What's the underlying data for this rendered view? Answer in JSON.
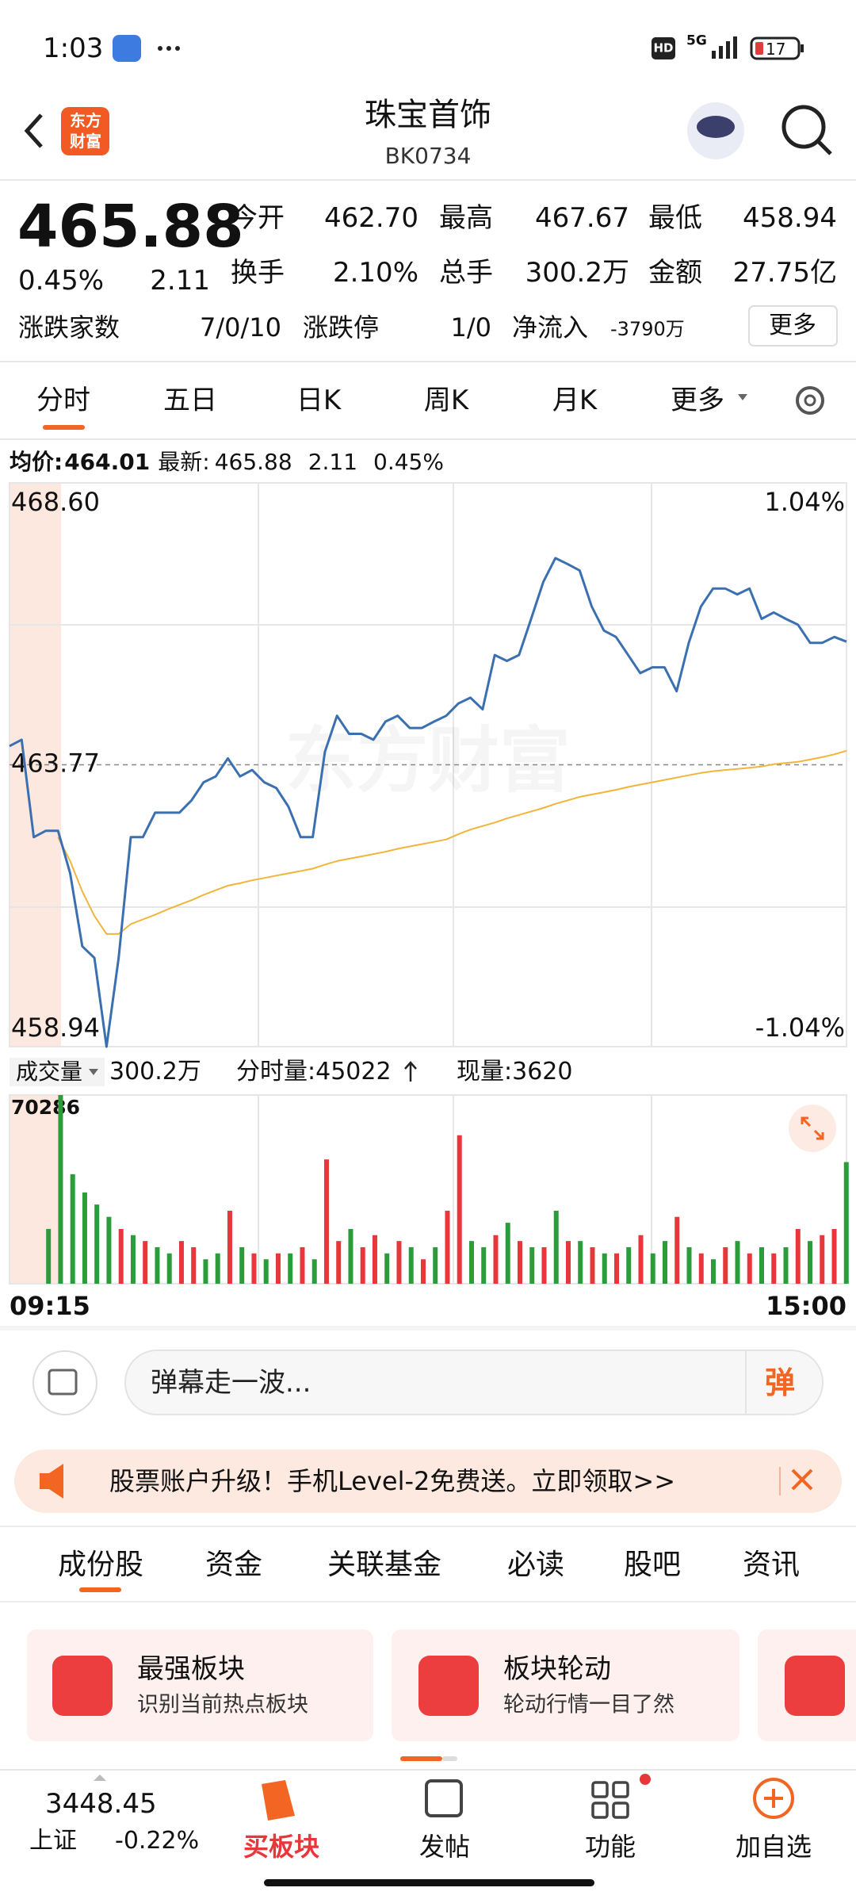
{
  "status_bar": {
    "time": "1:03",
    "hd": "HD",
    "network": "5G",
    "battery": "17"
  },
  "header": {
    "title": "珠宝首饰",
    "code": "BK0734",
    "logo": [
      "东方",
      "财富"
    ]
  },
  "quote": {
    "price": "465.88",
    "change_pct": "0.45%",
    "change": "2.11",
    "fields": [
      [
        "今开",
        "462.70"
      ],
      [
        "最高",
        "467.67"
      ],
      [
        "最低",
        "458.94"
      ],
      [
        "换手",
        "2.10%"
      ],
      [
        "总手",
        "300.2万"
      ],
      [
        "金额",
        "27.75亿"
      ]
    ],
    "breadth_label": "涨跌家数",
    "breadth": "7/0/10",
    "limit_label": "涨跌停",
    "limit": "1/0",
    "inflow_label": "净流入",
    "inflow": "-3790万",
    "more": "更多"
  },
  "period_tabs": [
    "分时",
    "五日",
    "日K",
    "周K",
    "月K",
    "更多"
  ],
  "chart_data": [
    {
      "type": "line",
      "watermark": "东方财富",
      "info": {
        "avg_label": "均价:",
        "avg": "464.01",
        "latest_label": "最新:",
        "latest": "465.88",
        "change": "2.11",
        "change_pct": "0.45%"
      },
      "ylim": [
        458.94,
        468.6
      ],
      "yticks": [
        {
          "value": 468.6,
          "label": "468.60"
        },
        {
          "value": 463.77,
          "label": "463.77"
        },
        {
          "value": 458.94,
          "label": "458.94"
        }
      ],
      "y2lim": [
        -1.04,
        1.04
      ],
      "y2ticks": [
        {
          "value": 1.04,
          "label": "1.04%"
        },
        {
          "value": -1.04,
          "label": "-1.04%"
        }
      ],
      "series": [
        {
          "color": "#3b70b0",
          "values": [
            464.09,
            464.2,
            462.53,
            462.64,
            462.64,
            461.91,
            460.66,
            460.46,
            458.94,
            460.46,
            462.53,
            462.53,
            462.95,
            462.95,
            462.95,
            463.16,
            463.47,
            463.57,
            463.88,
            463.57,
            463.68,
            463.47,
            463.37,
            463.05,
            462.53,
            462.53,
            463.99,
            464.61,
            464.3,
            464.3,
            464.2,
            464.51,
            464.61,
            464.4,
            464.4,
            464.51,
            464.61,
            464.82,
            464.92,
            464.72,
            465.65,
            465.55,
            465.65,
            466.27,
            466.9,
            467.31,
            467.21,
            467.1,
            466.48,
            466.07,
            465.96,
            465.65,
            465.34,
            465.44,
            465.44,
            465.03,
            465.86,
            466.48,
            466.79,
            466.79,
            466.69,
            466.79,
            466.27,
            466.38,
            466.27,
            466.17,
            465.86,
            465.86,
            465.96,
            465.88
          ]
        },
        {
          "color": "#f0b53a",
          "values": [
            null,
            null,
            null,
            null,
            462.53,
            462.12,
            461.6,
            461.18,
            460.87,
            460.87,
            461.04,
            461.12,
            461.2,
            461.29,
            461.37,
            461.45,
            461.54,
            461.62,
            461.7,
            461.74,
            461.79,
            461.83,
            461.87,
            461.91,
            461.95,
            461.99,
            462.06,
            462.12,
            462.16,
            462.2,
            462.24,
            462.28,
            462.33,
            462.37,
            462.41,
            462.45,
            462.49,
            462.58,
            462.66,
            462.72,
            462.78,
            462.85,
            462.91,
            462.97,
            463.03,
            463.1,
            463.16,
            463.22,
            463.26,
            463.3,
            463.34,
            463.39,
            463.43,
            463.47,
            463.51,
            463.55,
            463.59,
            463.63,
            463.66,
            463.68,
            463.7,
            463.72,
            463.74,
            463.78,
            463.8,
            463.82,
            463.86,
            463.9,
            463.95,
            464.01
          ]
        }
      ]
    },
    {
      "type": "bar",
      "header": {
        "label": "成交量",
        "total": "300.2万",
        "period_vol": "分时量:45022",
        "current_vol": "现量:3620"
      },
      "ylim": [
        0,
        70286
      ],
      "yticks": [
        70286
      ],
      "x_labels": [
        "09:15",
        "15:00"
      ],
      "values": [
        20400,
        70286,
        40800,
        34000,
        29500,
        24900,
        20400,
        18100,
        15900,
        13600,
        11300,
        15900,
        13600,
        9100,
        11300,
        27200,
        13600,
        11300,
        9100,
        11300,
        11300,
        13600,
        9100,
        46300,
        15900,
        20400,
        13600,
        18100,
        11300,
        15900,
        13600,
        9100,
        13600,
        27200,
        55300,
        15900,
        13600,
        18100,
        22700,
        15900,
        13600,
        13600,
        27200,
        15900,
        15900,
        13600,
        11300,
        11300,
        13600,
        18100,
        11300,
        15900,
        24900,
        13600,
        11300,
        9100,
        13600,
        15900,
        11300,
        13600,
        11300,
        13600,
        20400,
        15900,
        18100,
        20400,
        45300
      ],
      "colors": [
        "#2a9d3a",
        "#2a9d3a",
        "#2a9d3a",
        "#2a9d3a",
        "#2a9d3a",
        "#2a9d3a",
        "#e8363a",
        "#2a9d3a",
        "#e8363a",
        "#2a9d3a",
        "#2a9d3a",
        "#e8363a",
        "#e8363a",
        "#2a9d3a",
        "#2a9d3a",
        "#e8363a",
        "#2a9d3a",
        "#e8363a",
        "#2a9d3a",
        "#e8363a",
        "#2a9d3a",
        "#e8363a",
        "#2a9d3a",
        "#e8363a",
        "#e8363a",
        "#2a9d3a",
        "#e8363a",
        "#e8363a",
        "#2a9d3a",
        "#e8363a",
        "#2a9d3a",
        "#e8363a",
        "#2a9d3a",
        "#e8363a",
        "#e8363a",
        "#2a9d3a",
        "#2a9d3a",
        "#e8363a",
        "#2a9d3a",
        "#e8363a",
        "#2a9d3a",
        "#e8363a",
        "#2a9d3a",
        "#e8363a",
        "#2a9d3a",
        "#e8363a",
        "#2a9d3a",
        "#e8363a",
        "#2a9d3a",
        "#e8363a",
        "#2a9d3a",
        "#2a9d3a",
        "#e8363a",
        "#2a9d3a",
        "#e8363a",
        "#2a9d3a",
        "#e8363a",
        "#2a9d3a",
        "#e8363a",
        "#2a9d3a",
        "#e8363a",
        "#2a9d3a",
        "#e8363a",
        "#2a9d3a",
        "#e8363a",
        "#e8363a",
        "#2a9d3a"
      ]
    }
  ],
  "danmu": {
    "placeholder": "弹幕走一波...",
    "button": "弹"
  },
  "banner": "股票账户升级！手机Level-2免费送。立即领取>>",
  "section_tabs": [
    "成份股",
    "资金",
    "关联基金",
    "必读",
    "股吧",
    "资讯"
  ],
  "cards": [
    {
      "title": "最强板块",
      "subtitle": "识别当前热点板块"
    },
    {
      "title": "板块轮动",
      "subtitle": "轮动行情一目了然"
    }
  ],
  "bottom_nav": {
    "index_value": "3448.45",
    "index_name": "上证",
    "index_change": "-0.22%",
    "items": [
      "买板块",
      "发帖",
      "功能",
      "加自选"
    ]
  }
}
